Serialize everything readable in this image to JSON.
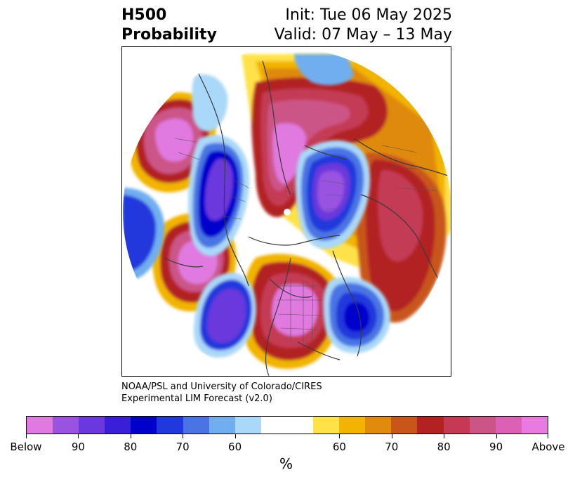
{
  "title": {
    "left_line1": "H500",
    "left_line2": "Probability",
    "right_line1": "Init: Tue 06 May 2025",
    "right_line2": "Valid: 07 May – 13 May"
  },
  "credit": {
    "line1": "NOAA/PSL and University of Colorado/CIRES",
    "line2": "Experimental LIM Forecast (v2.0)"
  },
  "colorbar": {
    "colors": [
      "#e07ae0",
      "#9a52e0",
      "#6a38dc",
      "#3a1fd8",
      "#0000cc",
      "#2038dc",
      "#4a74e4",
      "#70aef0",
      "#aad8f8",
      "#ffffff",
      "#ffffff",
      "#ffe24a",
      "#f2b400",
      "#e08a10",
      "#c8561a",
      "#b22222",
      "#c43a55",
      "#cc5588",
      "#dc60b4",
      "#e87ae0"
    ],
    "tick_labels": [
      "Below",
      "90",
      "80",
      "70",
      "60",
      "60",
      "70",
      "80",
      "90",
      "Above"
    ],
    "unit_label": "%"
  },
  "map": {
    "projection": "north-polar-stereographic",
    "variable": "500-hPa height anomaly probability",
    "palette": {
      "magenta": "#e07ae0",
      "pink": "#cc5588",
      "crimson": "#c43a55",
      "red": "#b22222",
      "orange": "#e08a10",
      "gold": "#f2b400",
      "yellow": "#ffe24a",
      "lightblue": "#aad8f8",
      "skyblue": "#70aef0",
      "blue": "#2038dc",
      "navy": "#0000cc",
      "purple": "#6a38dc",
      "violet": "#9a52e0"
    }
  }
}
